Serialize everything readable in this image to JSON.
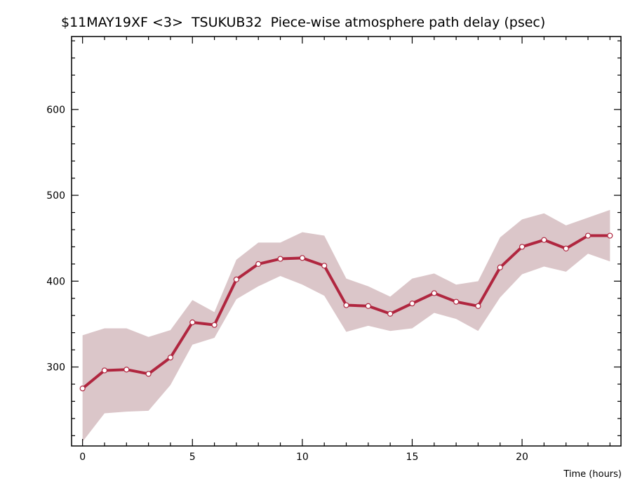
{
  "chart_data": {
    "type": "line",
    "title": "$11MAY19XF <3>  TSUKUB32  Piece-wise atmosphere path delay (psec)",
    "xlabel": "Time (hours)",
    "ylabel": "",
    "xlim": [
      -0.5,
      24.5
    ],
    "ylim": [
      208,
      685
    ],
    "x_ticks": [
      0,
      5,
      10,
      15,
      20
    ],
    "y_ticks": [
      300,
      400,
      500,
      600
    ],
    "grid": false,
    "x": [
      0,
      1,
      2,
      3,
      4,
      5,
      6,
      7,
      8,
      9,
      10,
      11,
      12,
      13,
      14,
      15,
      16,
      17,
      18,
      19,
      20,
      21,
      22,
      23,
      24
    ],
    "series": [
      {
        "values": [
          275,
          296,
          297,
          292,
          311,
          352,
          349,
          402,
          420,
          426,
          427,
          418,
          372,
          371,
          362,
          374,
          386,
          376,
          371,
          416,
          440,
          448,
          438,
          453,
          453
        ],
        "lower": [
          213,
          246,
          248,
          249,
          279,
          326,
          334,
          379,
          394,
          406,
          396,
          383,
          341,
          348,
          342,
          345,
          363,
          356,
          342,
          381,
          408,
          417,
          411,
          432,
          423
        ],
        "upper": [
          337,
          345,
          345,
          335,
          343,
          378,
          364,
          425,
          445,
          445,
          457,
          453,
          403,
          394,
          382,
          403,
          409,
          396,
          400,
          451,
          472,
          479,
          465,
          474,
          483
        ]
      }
    ],
    "colors": {
      "line": "#b0263f",
      "band": "#dbc6c9",
      "marker_fill": "#ffffff"
    }
  }
}
